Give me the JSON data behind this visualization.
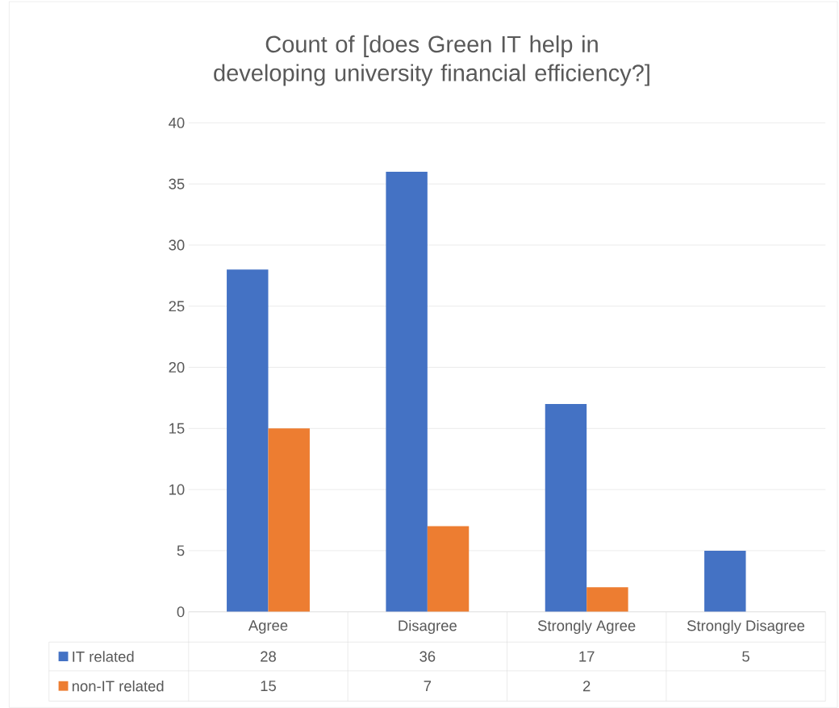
{
  "chart_data": {
    "type": "bar",
    "title": "Count of  [does Green IT help in developing university financial efficiency?]",
    "categories": [
      "Agree",
      "Disagree",
      "Strongly Agree",
      "Strongly Disagree"
    ],
    "series": [
      {
        "name": "IT related",
        "color": "#4472c4",
        "values": [
          28,
          36,
          17,
          5
        ]
      },
      {
        "name": "non-IT related",
        "color": "#ed7d31",
        "values": [
          15,
          7,
          2,
          null
        ]
      }
    ],
    "ylim": [
      0,
      40
    ],
    "yticks": [
      0,
      5,
      10,
      15,
      20,
      25,
      30,
      35,
      40
    ],
    "grid": "y",
    "legend": "bottom",
    "data_labels": true
  }
}
